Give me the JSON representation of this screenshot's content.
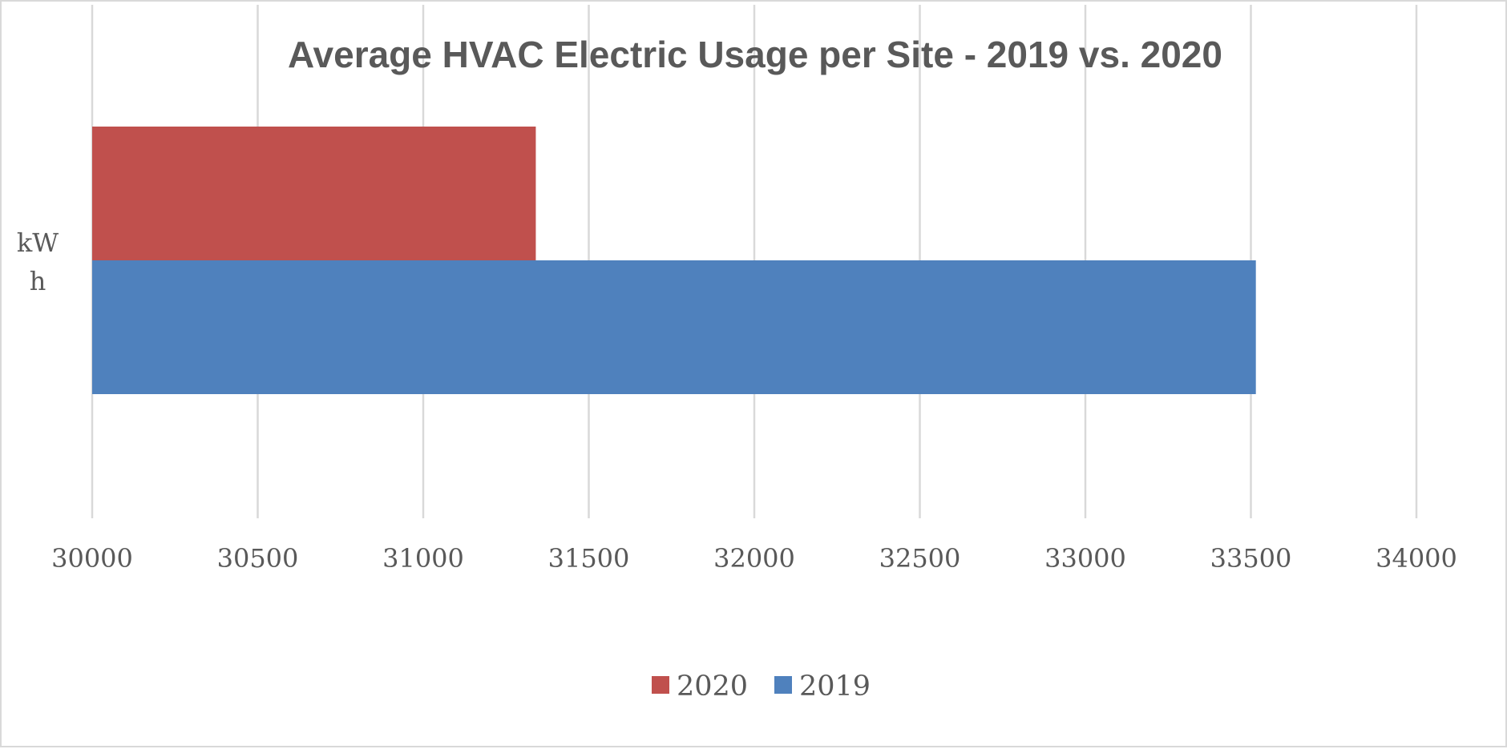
{
  "chart_data": {
    "type": "bar",
    "orientation": "horizontal",
    "title": "Average HVAC Electric Usage per Site - 2019 vs. 2020",
    "categories": [
      "kWh"
    ],
    "category_label_lines": [
      "kW",
      "h"
    ],
    "series": [
      {
        "name": "2020",
        "values": [
          31340
        ],
        "color": "#C0504D"
      },
      {
        "name": "2019",
        "values": [
          33515
        ],
        "color": "#4F81BD"
      }
    ],
    "xlim": [
      30000,
      34000
    ],
    "xticks": [
      30000,
      30500,
      31000,
      31500,
      32000,
      32500,
      33000,
      33500,
      34000
    ],
    "xlabel": "",
    "ylabel": "",
    "grid": true,
    "legend_position": "bottom",
    "colors": {
      "grid": "#D9D9D9",
      "text": "#595959",
      "border": "#D9D9D9"
    }
  }
}
